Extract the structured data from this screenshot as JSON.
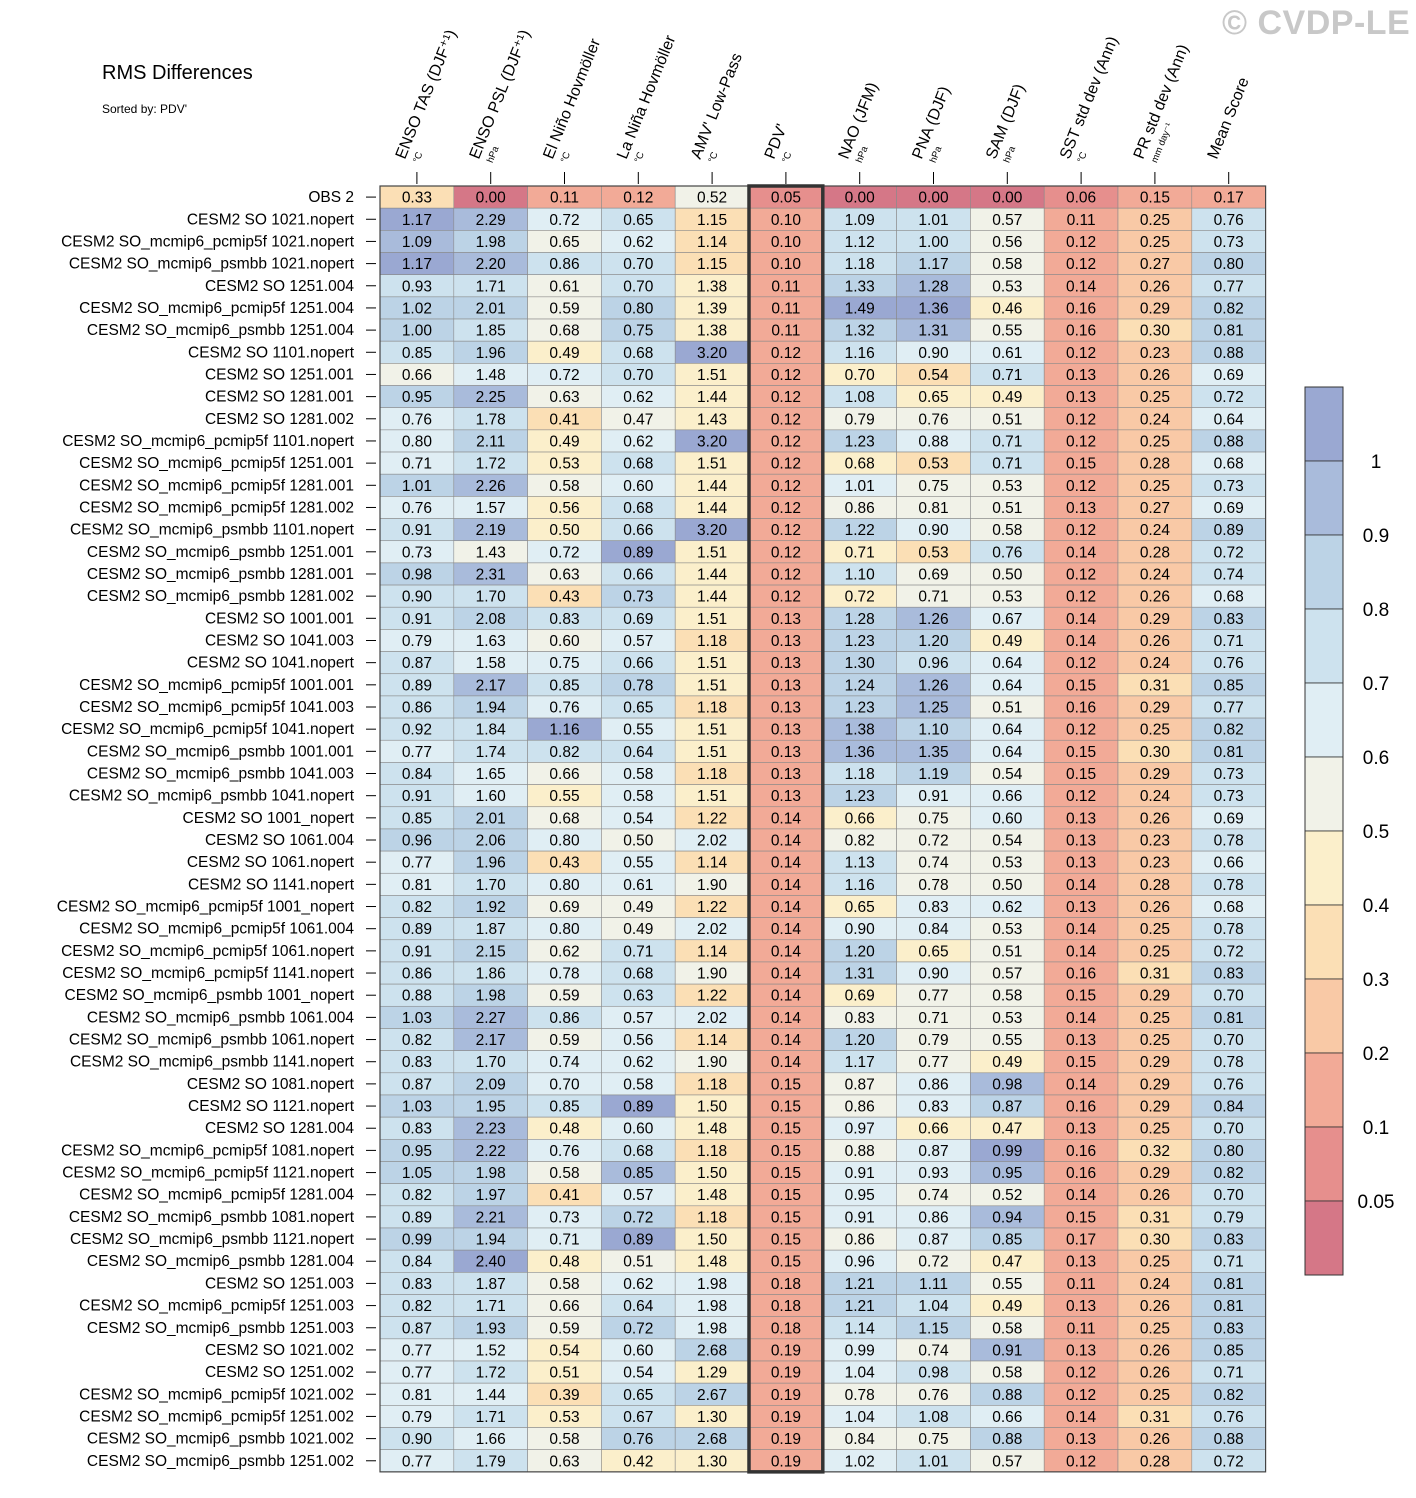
{
  "watermark": "© CVDP-LE",
  "chart_data": {
    "type": "heatmap",
    "title": "RMS Differences",
    "subtitle": "Sorted by: PDV'",
    "highlight_column": 5,
    "columns": [
      {
        "label": "ENSO TAS (DJF⁺¹)",
        "unit": "°C"
      },
      {
        "label": "ENSO PSL (DJF⁺¹)",
        "unit": "hPa"
      },
      {
        "label": "El Niño Hovmöller",
        "unit": "°C"
      },
      {
        "label": "La Niña Hovmöller",
        "unit": "°C"
      },
      {
        "label": "AMV' Low-Pass",
        "unit": "°C"
      },
      {
        "label": "PDV'",
        "unit": "°C"
      },
      {
        "label": "NAO (JFM)",
        "unit": "hPa"
      },
      {
        "label": "PNA (DJF)",
        "unit": "hPa"
      },
      {
        "label": "SAM (DJF)",
        "unit": "hPa"
      },
      {
        "label": "SST std dev (Ann)",
        "unit": "°C"
      },
      {
        "label": "PR std dev (Ann)",
        "unit": "mm day⁻¹"
      },
      {
        "label": "Mean Score",
        "unit": ""
      }
    ],
    "rows": [
      {
        "label": "OBS 2",
        "values": [
          0.33,
          0.0,
          0.11,
          0.12,
          0.52,
          0.05,
          0.0,
          0.0,
          0.0,
          0.06,
          0.15,
          0.17
        ],
        "scores": [
          0.33,
          0.0,
          0.11,
          0.12,
          0.52,
          0.05,
          0.0,
          0.0,
          0.0,
          0.06,
          0.15,
          0.17
        ]
      },
      {
        "label": "CESM2 SO 1021.nopert",
        "values": [
          1.17,
          2.29,
          0.72,
          0.65,
          1.15,
          0.1,
          1.09,
          1.01,
          0.57,
          0.11,
          0.25,
          0.76
        ]
      },
      {
        "label": "CESM2 SO_mcmip6_pcmip5f 1021.nopert",
        "values": [
          1.09,
          1.98,
          0.65,
          0.62,
          1.14,
          0.1,
          1.12,
          1.0,
          0.56,
          0.12,
          0.25,
          0.73
        ]
      },
      {
        "label": "CESM2 SO_mcmip6_psmbb 1021.nopert",
        "values": [
          1.17,
          2.2,
          0.86,
          0.7,
          1.15,
          0.1,
          1.18,
          1.17,
          0.58,
          0.12,
          0.27,
          0.8
        ]
      },
      {
        "label": "CESM2 SO 1251.004",
        "values": [
          0.93,
          1.71,
          0.61,
          0.7,
          1.38,
          0.11,
          1.33,
          1.28,
          0.53,
          0.14,
          0.26,
          0.77
        ]
      },
      {
        "label": "CESM2 SO_mcmip6_pcmip5f 1251.004",
        "values": [
          1.02,
          2.01,
          0.59,
          0.8,
          1.39,
          0.11,
          1.49,
          1.36,
          0.46,
          0.16,
          0.29,
          0.82
        ]
      },
      {
        "label": "CESM2 SO_mcmip6_psmbb 1251.004",
        "values": [
          1.0,
          1.85,
          0.68,
          0.75,
          1.38,
          0.11,
          1.32,
          1.31,
          0.55,
          0.16,
          0.3,
          0.81
        ]
      },
      {
        "label": "CESM2 SO 1101.nopert",
        "values": [
          0.85,
          1.96,
          0.49,
          0.68,
          3.2,
          0.12,
          1.16,
          0.9,
          0.61,
          0.12,
          0.23,
          0.88
        ]
      },
      {
        "label": "CESM2 SO 1251.001",
        "values": [
          0.66,
          1.48,
          0.72,
          0.7,
          1.51,
          0.12,
          0.7,
          0.54,
          0.71,
          0.13,
          0.26,
          0.69
        ]
      },
      {
        "label": "CESM2 SO 1281.001",
        "values": [
          0.95,
          2.25,
          0.63,
          0.62,
          1.44,
          0.12,
          1.08,
          0.65,
          0.49,
          0.13,
          0.25,
          0.72
        ]
      },
      {
        "label": "CESM2 SO 1281.002",
        "values": [
          0.76,
          1.78,
          0.41,
          0.47,
          1.43,
          0.12,
          0.79,
          0.76,
          0.51,
          0.12,
          0.24,
          0.64
        ]
      },
      {
        "label": "CESM2 SO_mcmip6_pcmip5f 1101.nopert",
        "values": [
          0.8,
          2.11,
          0.49,
          0.62,
          3.2,
          0.12,
          1.23,
          0.88,
          0.71,
          0.12,
          0.25,
          0.88
        ]
      },
      {
        "label": "CESM2 SO_mcmip6_pcmip5f 1251.001",
        "values": [
          0.71,
          1.72,
          0.53,
          0.68,
          1.51,
          0.12,
          0.68,
          0.53,
          0.71,
          0.15,
          0.28,
          0.68
        ]
      },
      {
        "label": "CESM2 SO_mcmip6_pcmip5f 1281.001",
        "values": [
          1.01,
          2.26,
          0.58,
          0.6,
          1.44,
          0.12,
          1.01,
          0.75,
          0.53,
          0.12,
          0.25,
          0.73
        ]
      },
      {
        "label": "CESM2 SO_mcmip6_pcmip5f 1281.002",
        "values": [
          0.76,
          1.57,
          0.56,
          0.68,
          1.44,
          0.12,
          0.86,
          0.81,
          0.51,
          0.13,
          0.27,
          0.69
        ]
      },
      {
        "label": "CESM2 SO_mcmip6_psmbb 1101.nopert",
        "values": [
          0.91,
          2.19,
          0.5,
          0.66,
          3.2,
          0.12,
          1.22,
          0.9,
          0.58,
          0.12,
          0.24,
          0.89
        ]
      },
      {
        "label": "CESM2 SO_mcmip6_psmbb 1251.001",
        "values": [
          0.73,
          1.43,
          0.72,
          0.89,
          1.51,
          0.12,
          0.71,
          0.53,
          0.76,
          0.14,
          0.28,
          0.72
        ]
      },
      {
        "label": "CESM2 SO_mcmip6_psmbb 1281.001",
        "values": [
          0.98,
          2.31,
          0.63,
          0.66,
          1.44,
          0.12,
          1.1,
          0.69,
          0.5,
          0.12,
          0.24,
          0.74
        ]
      },
      {
        "label": "CESM2 SO_mcmip6_psmbb 1281.002",
        "values": [
          0.9,
          1.7,
          0.43,
          0.73,
          1.44,
          0.12,
          0.72,
          0.71,
          0.53,
          0.12,
          0.26,
          0.68
        ]
      },
      {
        "label": "CESM2 SO 1001.001",
        "values": [
          0.91,
          2.08,
          0.83,
          0.69,
          1.51,
          0.13,
          1.28,
          1.26,
          0.67,
          0.14,
          0.29,
          0.83
        ]
      },
      {
        "label": "CESM2 SO 1041.003",
        "values": [
          0.79,
          1.63,
          0.6,
          0.57,
          1.18,
          0.13,
          1.23,
          1.2,
          0.49,
          0.14,
          0.26,
          0.71
        ]
      },
      {
        "label": "CESM2 SO 1041.nopert",
        "values": [
          0.87,
          1.58,
          0.75,
          0.66,
          1.51,
          0.13,
          1.3,
          0.96,
          0.64,
          0.12,
          0.24,
          0.76
        ]
      },
      {
        "label": "CESM2 SO_mcmip6_pcmip5f 1001.001",
        "values": [
          0.89,
          2.17,
          0.85,
          0.78,
          1.51,
          0.13,
          1.24,
          1.26,
          0.64,
          0.15,
          0.31,
          0.85
        ]
      },
      {
        "label": "CESM2 SO_mcmip6_pcmip5f 1041.003",
        "values": [
          0.86,
          1.94,
          0.76,
          0.65,
          1.18,
          0.13,
          1.23,
          1.25,
          0.51,
          0.16,
          0.29,
          0.77
        ]
      },
      {
        "label": "CESM2 SO_mcmip6_pcmip5f 1041.nopert",
        "values": [
          0.92,
          1.84,
          1.16,
          0.55,
          1.51,
          0.13,
          1.38,
          1.1,
          0.64,
          0.12,
          0.25,
          0.82
        ]
      },
      {
        "label": "CESM2 SO_mcmip6_psmbb 1001.001",
        "values": [
          0.77,
          1.74,
          0.82,
          0.64,
          1.51,
          0.13,
          1.36,
          1.35,
          0.64,
          0.15,
          0.3,
          0.81
        ]
      },
      {
        "label": "CESM2 SO_mcmip6_psmbb 1041.003",
        "values": [
          0.84,
          1.65,
          0.66,
          0.58,
          1.18,
          0.13,
          1.18,
          1.19,
          0.54,
          0.15,
          0.29,
          0.73
        ]
      },
      {
        "label": "CESM2 SO_mcmip6_psmbb 1041.nopert",
        "values": [
          0.91,
          1.6,
          0.55,
          0.58,
          1.51,
          0.13,
          1.23,
          0.91,
          0.66,
          0.12,
          0.24,
          0.73
        ]
      },
      {
        "label": "CESM2 SO 1001_nopert",
        "values": [
          0.85,
          2.01,
          0.68,
          0.54,
          1.22,
          0.14,
          0.66,
          0.75,
          0.6,
          0.13,
          0.26,
          0.69
        ]
      },
      {
        "label": "CESM2 SO 1061.004",
        "values": [
          0.96,
          2.06,
          0.8,
          0.5,
          2.02,
          0.14,
          0.82,
          0.72,
          0.54,
          0.13,
          0.23,
          0.78
        ]
      },
      {
        "label": "CESM2 SO 1061.nopert",
        "values": [
          0.77,
          1.96,
          0.43,
          0.55,
          1.14,
          0.14,
          1.13,
          0.74,
          0.53,
          0.13,
          0.23,
          0.66
        ]
      },
      {
        "label": "CESM2 SO 1141.nopert",
        "values": [
          0.81,
          1.7,
          0.8,
          0.61,
          1.9,
          0.14,
          1.16,
          0.78,
          0.5,
          0.14,
          0.28,
          0.78
        ]
      },
      {
        "label": "CESM2 SO_mcmip6_pcmip5f 1001_nopert",
        "values": [
          0.82,
          1.92,
          0.69,
          0.49,
          1.22,
          0.14,
          0.65,
          0.83,
          0.62,
          0.13,
          0.26,
          0.68
        ]
      },
      {
        "label": "CESM2 SO_mcmip6_pcmip5f 1061.004",
        "values": [
          0.89,
          1.87,
          0.8,
          0.49,
          2.02,
          0.14,
          0.9,
          0.84,
          0.53,
          0.14,
          0.25,
          0.78
        ]
      },
      {
        "label": "CESM2 SO_mcmip6_pcmip5f 1061.nopert",
        "values": [
          0.91,
          2.15,
          0.62,
          0.71,
          1.14,
          0.14,
          1.2,
          0.65,
          0.51,
          0.14,
          0.25,
          0.72
        ]
      },
      {
        "label": "CESM2 SO_mcmip6_pcmip5f 1141.nopert",
        "values": [
          0.86,
          1.86,
          0.78,
          0.68,
          1.9,
          0.14,
          1.31,
          0.9,
          0.57,
          0.16,
          0.31,
          0.83
        ]
      },
      {
        "label": "CESM2 SO_mcmip6_psmbb 1001_nopert",
        "values": [
          0.88,
          1.98,
          0.59,
          0.63,
          1.22,
          0.14,
          0.69,
          0.77,
          0.58,
          0.15,
          0.29,
          0.7
        ]
      },
      {
        "label": "CESM2 SO_mcmip6_psmbb 1061.004",
        "values": [
          1.03,
          2.27,
          0.86,
          0.57,
          2.02,
          0.14,
          0.83,
          0.71,
          0.53,
          0.14,
          0.25,
          0.81
        ]
      },
      {
        "label": "CESM2 SO_mcmip6_psmbb 1061.nopert",
        "values": [
          0.82,
          2.17,
          0.59,
          0.56,
          1.14,
          0.14,
          1.2,
          0.79,
          0.55,
          0.13,
          0.25,
          0.7
        ]
      },
      {
        "label": "CESM2 SO_mcmip6_psmbb 1141.nopert",
        "values": [
          0.83,
          1.7,
          0.74,
          0.62,
          1.9,
          0.14,
          1.17,
          0.77,
          0.49,
          0.15,
          0.29,
          0.78
        ]
      },
      {
        "label": "CESM2 SO 1081.nopert",
        "values": [
          0.87,
          2.09,
          0.7,
          0.58,
          1.18,
          0.15,
          0.87,
          0.86,
          0.98,
          0.14,
          0.29,
          0.76
        ]
      },
      {
        "label": "CESM2 SO 1121.nopert",
        "values": [
          1.03,
          1.95,
          0.85,
          0.89,
          1.5,
          0.15,
          0.86,
          0.83,
          0.87,
          0.16,
          0.29,
          0.84
        ]
      },
      {
        "label": "CESM2 SO 1281.004",
        "values": [
          0.83,
          2.23,
          0.48,
          0.6,
          1.48,
          0.15,
          0.97,
          0.66,
          0.47,
          0.13,
          0.25,
          0.7
        ]
      },
      {
        "label": "CESM2 SO_mcmip6_pcmip5f 1081.nopert",
        "values": [
          0.95,
          2.22,
          0.76,
          0.68,
          1.18,
          0.15,
          0.88,
          0.87,
          0.99,
          0.16,
          0.32,
          0.8
        ]
      },
      {
        "label": "CESM2 SO_mcmip6_pcmip5f 1121.nopert",
        "values": [
          1.05,
          1.98,
          0.58,
          0.85,
          1.5,
          0.15,
          0.91,
          0.93,
          0.95,
          0.16,
          0.29,
          0.82
        ]
      },
      {
        "label": "CESM2 SO_mcmip6_pcmip5f 1281.004",
        "values": [
          0.82,
          1.97,
          0.41,
          0.57,
          1.48,
          0.15,
          0.95,
          0.74,
          0.52,
          0.14,
          0.26,
          0.7
        ]
      },
      {
        "label": "CESM2 SO_mcmip6_psmbb 1081.nopert",
        "values": [
          0.89,
          2.21,
          0.73,
          0.72,
          1.18,
          0.15,
          0.91,
          0.86,
          0.94,
          0.15,
          0.31,
          0.79
        ]
      },
      {
        "label": "CESM2 SO_mcmip6_psmbb 1121.nopert",
        "values": [
          0.99,
          1.94,
          0.71,
          0.89,
          1.5,
          0.15,
          0.86,
          0.87,
          0.85,
          0.17,
          0.3,
          0.83
        ]
      },
      {
        "label": "CESM2 SO_mcmip6_psmbb 1281.004",
        "values": [
          0.84,
          2.4,
          0.48,
          0.51,
          1.48,
          0.15,
          0.96,
          0.72,
          0.47,
          0.13,
          0.25,
          0.71
        ]
      },
      {
        "label": "CESM2 SO 1251.003",
        "values": [
          0.83,
          1.87,
          0.58,
          0.62,
          1.98,
          0.18,
          1.21,
          1.11,
          0.55,
          0.11,
          0.24,
          0.81
        ]
      },
      {
        "label": "CESM2 SO_mcmip6_pcmip5f 1251.003",
        "values": [
          0.82,
          1.71,
          0.66,
          0.64,
          1.98,
          0.18,
          1.21,
          1.04,
          0.49,
          0.13,
          0.26,
          0.81
        ]
      },
      {
        "label": "CESM2 SO_mcmip6_psmbb 1251.003",
        "values": [
          0.87,
          1.93,
          0.59,
          0.72,
          1.98,
          0.18,
          1.14,
          1.15,
          0.58,
          0.11,
          0.25,
          0.83
        ]
      },
      {
        "label": "CESM2 SO 1021.002",
        "values": [
          0.77,
          1.52,
          0.54,
          0.6,
          2.68,
          0.19,
          0.99,
          0.74,
          0.91,
          0.13,
          0.26,
          0.85
        ]
      },
      {
        "label": "CESM2 SO 1251.002",
        "values": [
          0.77,
          1.72,
          0.51,
          0.54,
          1.29,
          0.19,
          1.04,
          0.98,
          0.58,
          0.12,
          0.26,
          0.71
        ]
      },
      {
        "label": "CESM2 SO_mcmip6_pcmip5f 1021.002",
        "values": [
          0.81,
          1.44,
          0.39,
          0.65,
          2.67,
          0.19,
          0.78,
          0.76,
          0.88,
          0.12,
          0.25,
          0.82
        ]
      },
      {
        "label": "CESM2 SO_mcmip6_pcmip5f 1251.002",
        "values": [
          0.79,
          1.71,
          0.53,
          0.67,
          1.3,
          0.19,
          1.04,
          1.08,
          0.66,
          0.14,
          0.31,
          0.76
        ]
      },
      {
        "label": "CESM2 SO_mcmip6_psmbb 1021.002",
        "values": [
          0.9,
          1.66,
          0.58,
          0.76,
          2.68,
          0.19,
          0.84,
          0.75,
          0.88,
          0.13,
          0.26,
          0.88
        ]
      },
      {
        "label": "CESM2 SO_mcmip6_psmbb 1251.002",
        "values": [
          0.77,
          1.79,
          0.63,
          0.42,
          1.3,
          0.19,
          1.02,
          1.01,
          0.57,
          0.12,
          0.28,
          0.72
        ]
      }
    ],
    "colorbar": {
      "labels": [
        "1",
        "0.9",
        "0.8",
        "0.7",
        "0.6",
        "0.5",
        "0.4",
        "0.3",
        "0.2",
        "0.1",
        "0.05"
      ],
      "colors": [
        "#9aa8d2",
        "#a9bbdb",
        "#bcd3e6",
        "#cde2ee",
        "#e0eef4",
        "#f1f2e8",
        "#fbefcb",
        "#fbdfb5",
        "#f9c9a6",
        "#f2aa97",
        "#e68f8d",
        "#d57787"
      ]
    }
  }
}
